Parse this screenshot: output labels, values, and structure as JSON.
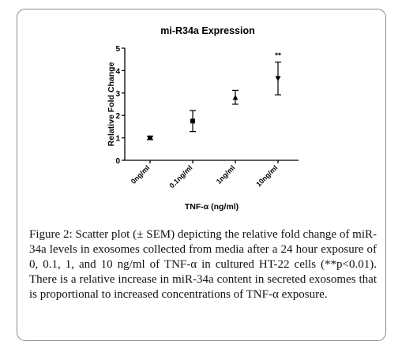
{
  "chart_data": {
    "type": "scatter",
    "title": "mi-R34a  Expression",
    "xlabel": "TNF-α (ng/ml)",
    "ylabel": "Relative Fold Change",
    "categories": [
      "0ng/ml",
      "0.1ng/ml",
      "1ng/ml",
      "10ng/ml"
    ],
    "y_ticks": [
      "0",
      "1",
      "2",
      "3",
      "4",
      "5"
    ],
    "ylim": [
      0,
      5
    ],
    "series": [
      {
        "values": [
          1.0,
          1.75,
          2.8,
          3.65
        ],
        "err_low": [
          0.92,
          1.28,
          2.5,
          2.92
        ],
        "err_high": [
          1.08,
          2.22,
          3.12,
          4.38
        ],
        "markers": [
          "circle",
          "square",
          "triangle",
          "triangle-down"
        ]
      }
    ],
    "annotations": [
      {
        "category": "10ng/ml",
        "text": "**"
      }
    ]
  },
  "caption": {
    "label": "Figure 2:",
    "text": " Scatter plot (± SEM) depicting the relative fold change of miR-34a levels in exosomes collected from media after a 24 hour exposure of 0, 0.1, 1, and 10 ng/ml of TNF-α in cultured HT-22 cells (**p<0.01). There is a relative increase in miR-34a content in secreted exosomes that is proportional to increased concentrations of TNF-α exposure."
  }
}
